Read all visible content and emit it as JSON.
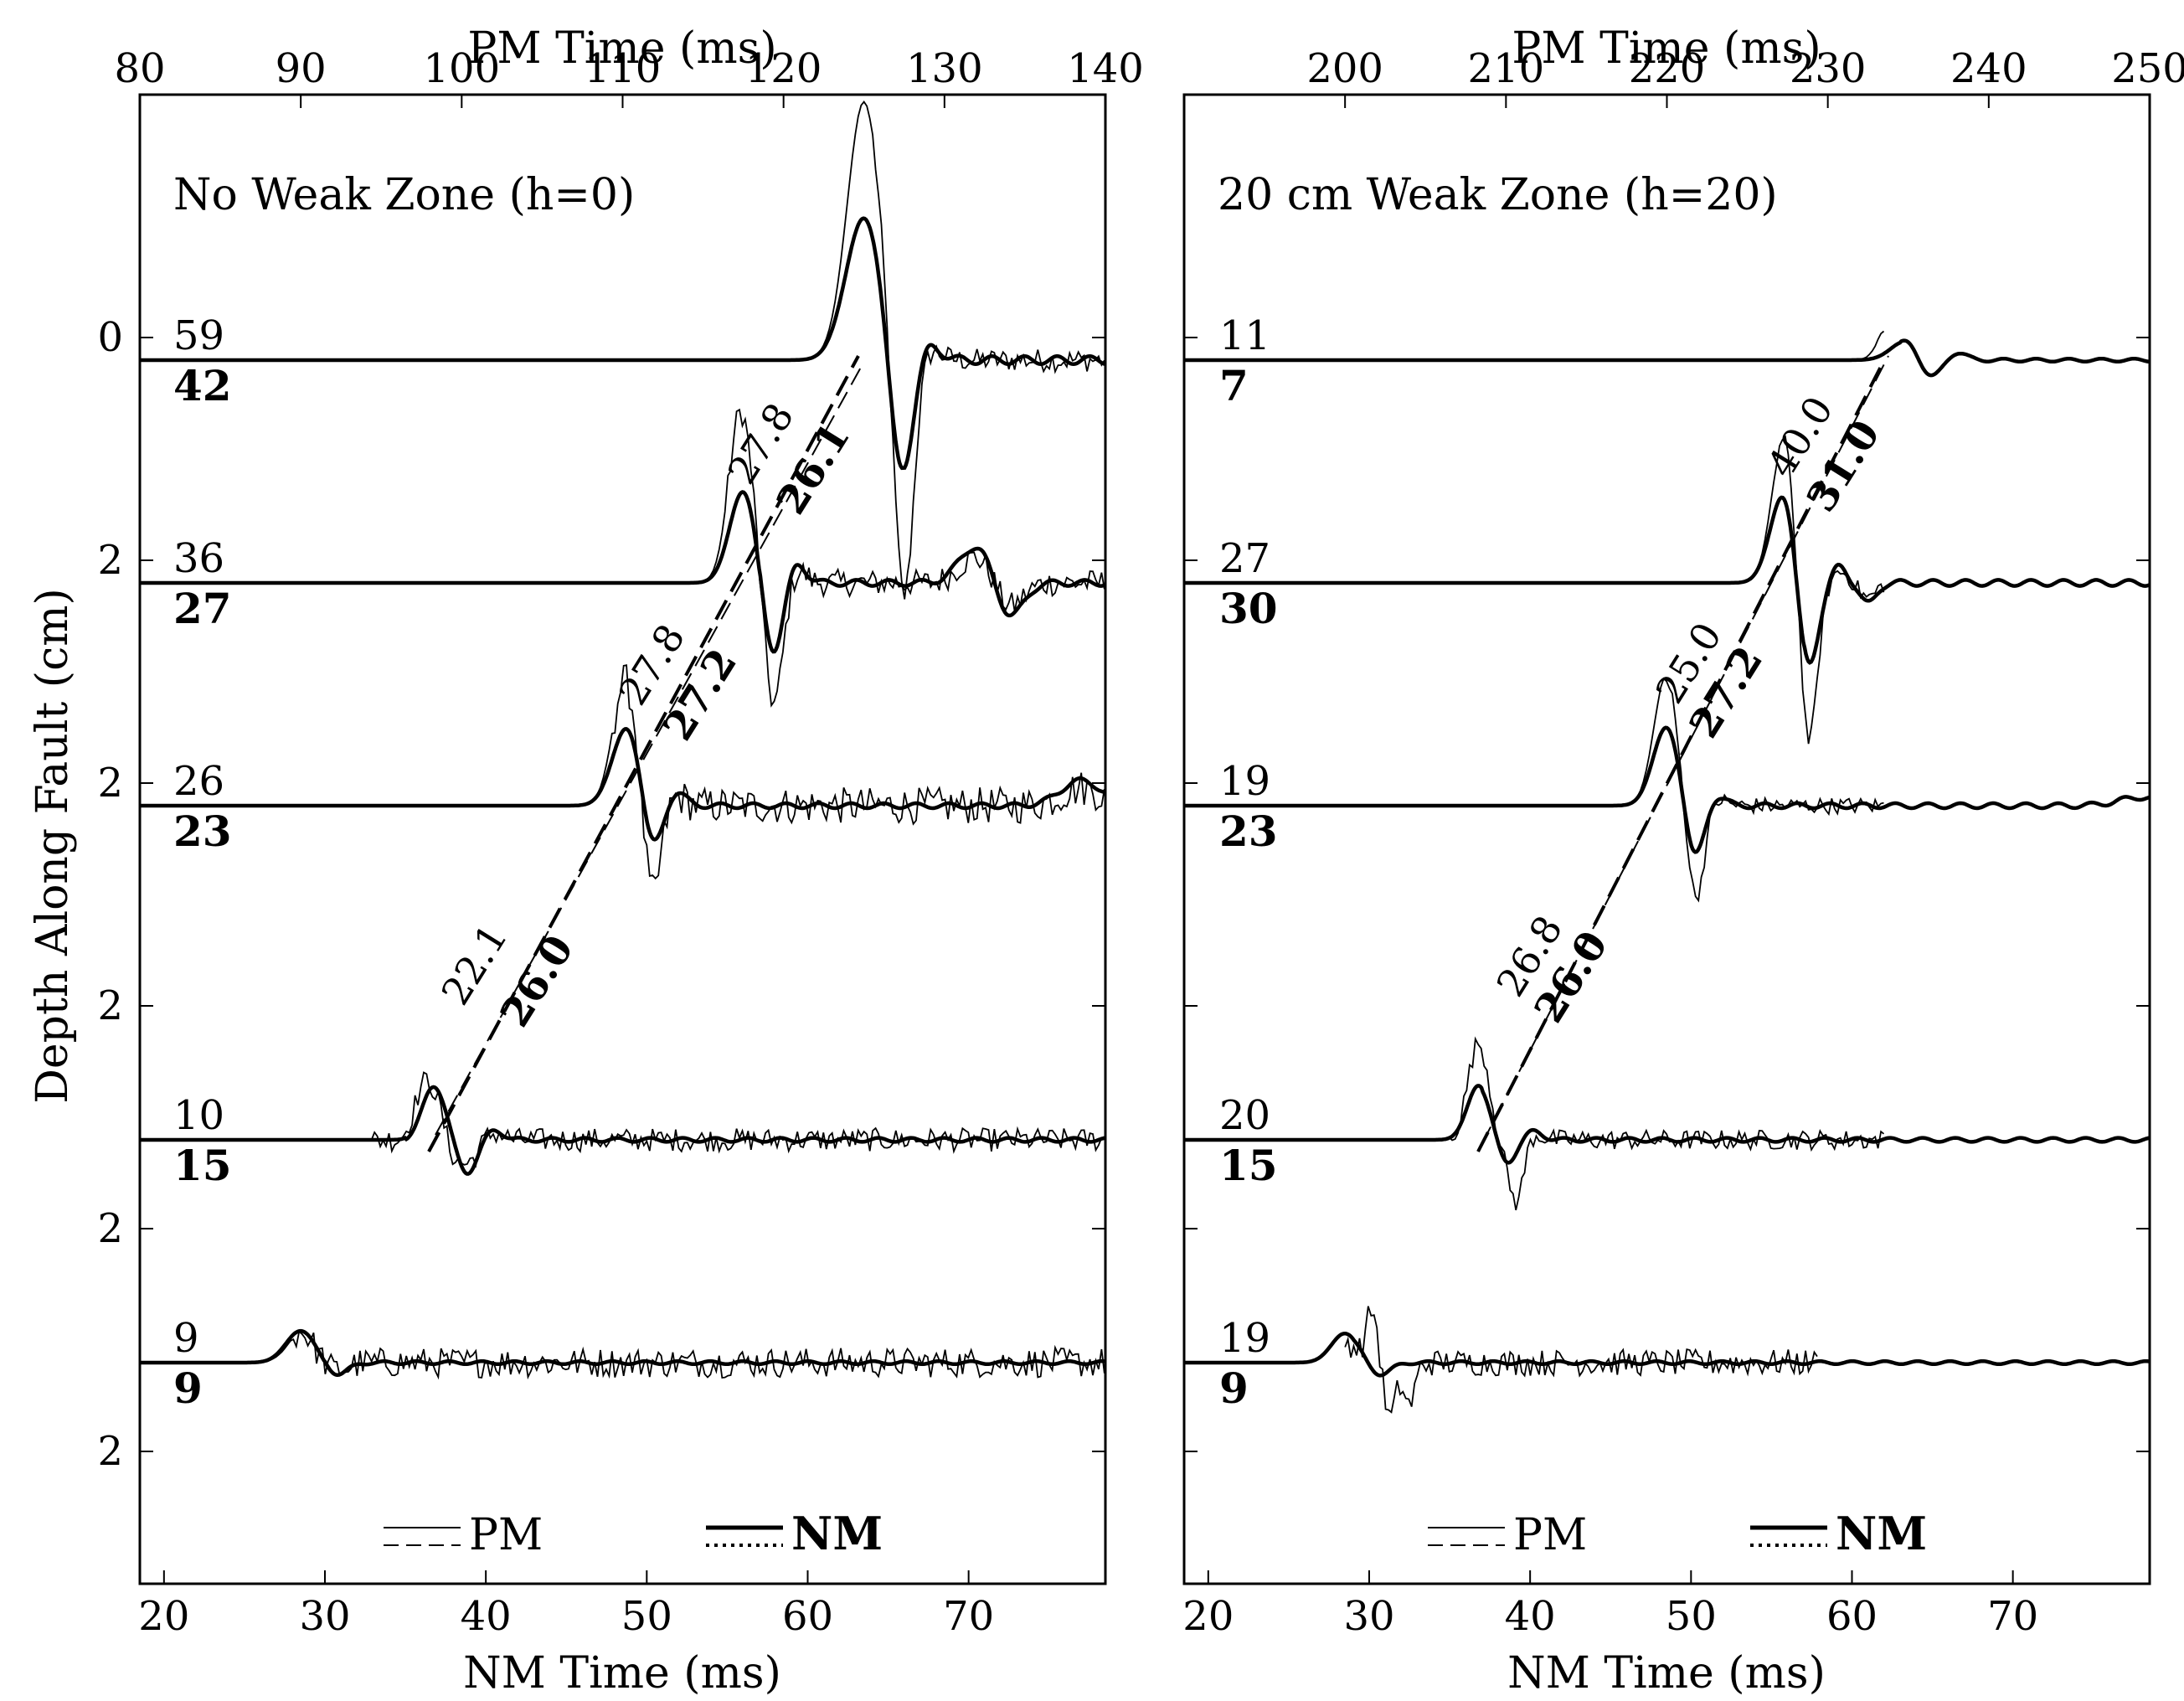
{
  "chart_data": [
    {
      "type": "line",
      "panel_title": "No Weak Zone (h=0)",
      "top_axis": {
        "label": "PM Time (ms)",
        "ticks": [
          80,
          90,
          100,
          110,
          120,
          130,
          140
        ],
        "range": [
          80,
          140
        ]
      },
      "bottom_axis": {
        "label": "NM Time (ms)",
        "ticks": [
          20,
          30,
          40,
          50,
          60,
          70
        ],
        "range": [
          18.5,
          78.5
        ]
      },
      "y_axis": {
        "label": "Depth Along Fault (cm)",
        "tick_labels": [
          "0",
          "2",
          "2",
          "2",
          "2",
          "2"
        ]
      },
      "traces": [
        {
          "pm_amp": "59",
          "nm_amp": "42"
        },
        {
          "pm_amp": "36",
          "nm_amp": "27"
        },
        {
          "pm_amp": "26",
          "nm_amp": "23"
        },
        {
          "pm_amp": "10",
          "nm_amp": "15"
        },
        {
          "pm_amp": "9",
          "nm_amp": "9"
        }
      ],
      "velocity_labels": {
        "pm": [
          "22.1",
          "27.8",
          "27.8"
        ],
        "nm": [
          "26.0",
          "27.2",
          "26.1"
        ]
      },
      "legend": {
        "pm": "PM",
        "nm": "NM"
      }
    },
    {
      "type": "line",
      "panel_title": "20 cm Weak Zone (h=20)",
      "top_axis": {
        "label": "PM Time (ms)",
        "ticks": [
          200,
          210,
          220,
          230,
          240,
          250
        ],
        "range": [
          190,
          250
        ]
      },
      "bottom_axis": {
        "label": "NM Time (ms)",
        "ticks": [
          20,
          30,
          40,
          50,
          60,
          70
        ],
        "range": [
          18.5,
          78.5
        ]
      },
      "y_axis": {
        "label": "",
        "tick_labels": []
      },
      "traces": [
        {
          "pm_amp": "11",
          "nm_amp": "7"
        },
        {
          "pm_amp": "27",
          "nm_amp": "30"
        },
        {
          "pm_amp": "19",
          "nm_amp": "23"
        },
        {
          "pm_amp": "20",
          "nm_amp": "15"
        },
        {
          "pm_amp": "19",
          "nm_amp": "9"
        }
      ],
      "velocity_labels": {
        "pm": [
          "26.8",
          "25.0",
          "40.0"
        ],
        "nm": [
          "26.0",
          "27.2",
          "31.0"
        ]
      },
      "legend": {
        "pm": "PM",
        "nm": "NM"
      }
    }
  ]
}
